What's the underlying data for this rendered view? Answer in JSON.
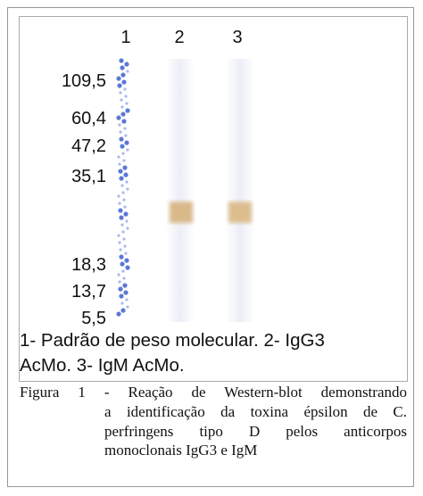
{
  "figure": {
    "lanes": [
      "1",
      "2",
      "3"
    ],
    "markers": [
      "109,5",
      "60,4",
      "47,2",
      "35,1",
      "18,3",
      "13,7",
      "5,5"
    ],
    "legend": [
      "1- Padrão de peso molecular. 2- IgG3",
      "AcMo. 3- IgM AcMo."
    ],
    "caption": [
      "Figura 1 - Reação de Western-blot demonstrando",
      "a identificação da toxina épsilon de C.",
      "perfringens tipo D pelos anticorpos",
      "monoclonais IgG3 e IgM"
    ]
  }
}
